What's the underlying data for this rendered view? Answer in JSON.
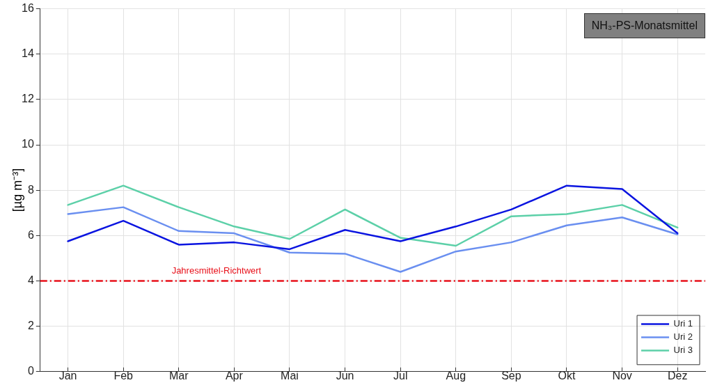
{
  "chart_data": {
    "type": "line",
    "title": "NH₃-PS-Monatsmittel",
    "ylabel": "[µg m⁻³]",
    "categories": [
      "Jan",
      "Feb",
      "Mar",
      "Apr",
      "Mai",
      "Jun",
      "Jul",
      "Aug",
      "Sep",
      "Okt",
      "Nov",
      "Dez"
    ],
    "series": [
      {
        "name": "Uri 1",
        "color": "#0a14e0",
        "values": [
          5.75,
          6.65,
          5.6,
          5.7,
          5.4,
          6.25,
          5.75,
          6.4,
          7.15,
          8.2,
          8.05,
          6.1
        ]
      },
      {
        "name": "Uri 2",
        "color": "#6a8ff0",
        "values": [
          6.95,
          7.25,
          6.2,
          6.1,
          5.25,
          5.2,
          4.4,
          5.3,
          5.7,
          6.45,
          6.8,
          6.05
        ]
      },
      {
        "name": "Uri 3",
        "color": "#5cd0a8",
        "values": [
          7.35,
          8.2,
          7.25,
          6.4,
          5.85,
          7.15,
          5.9,
          5.55,
          6.85,
          6.95,
          7.35,
          6.35
        ]
      }
    ],
    "ylim": [
      0,
      16
    ],
    "yticks": [
      0,
      2,
      4,
      6,
      8,
      10,
      12,
      14,
      16
    ],
    "ref_lines": [
      {
        "axis": "y",
        "value": 4,
        "label": "Jahresmittel-Richtwert",
        "color": "#e8101a",
        "line_style": "dashdot"
      }
    ],
    "grid": true,
    "legend": "bottom right",
    "marker": "none",
    "line_style": "solid"
  }
}
